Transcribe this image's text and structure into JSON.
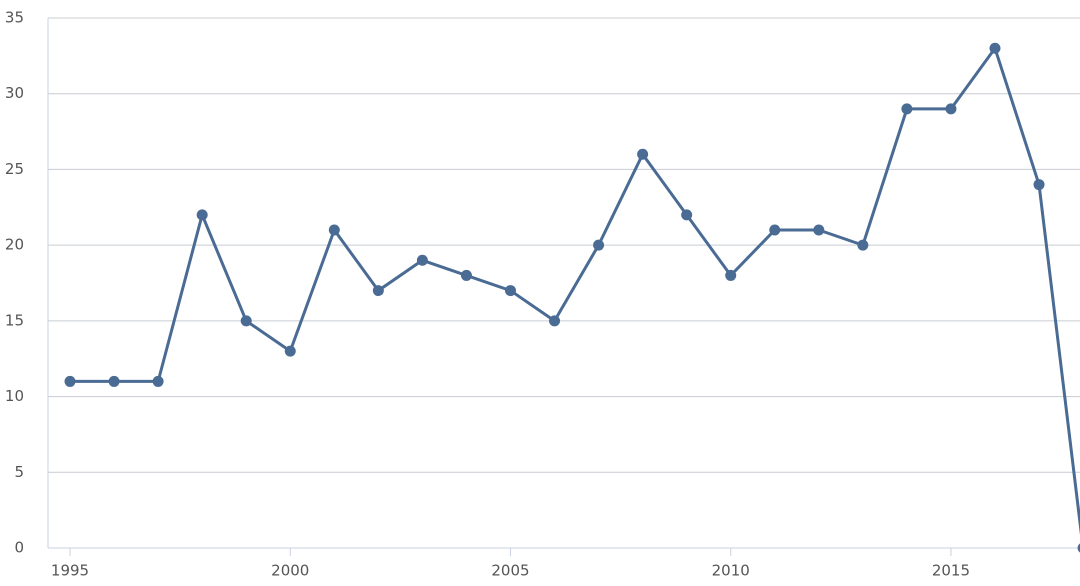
{
  "chart_data": {
    "type": "line",
    "x": [
      1995,
      1996,
      1997,
      1998,
      1999,
      2000,
      2001,
      2002,
      2003,
      2004,
      2005,
      2006,
      2007,
      2008,
      2009,
      2010,
      2011,
      2012,
      2013,
      2014,
      2015,
      2016,
      2017,
      2018
    ],
    "series": [
      {
        "color": "#4a6b93",
        "values": [
          11,
          11,
          11,
          22,
          15,
          13,
          21,
          17,
          19,
          18,
          17,
          15,
          20,
          26,
          22,
          18,
          21,
          21,
          20,
          29,
          29,
          33,
          24,
          0
        ]
      }
    ],
    "xlim": [
      1994.5,
      2017.93
    ],
    "ylim": [
      0,
      35
    ],
    "xticks": [
      1995,
      2000,
      2005,
      2010,
      2015
    ],
    "yticks": [
      0,
      5,
      10,
      15,
      20,
      25,
      30,
      35
    ],
    "grid": true
  }
}
